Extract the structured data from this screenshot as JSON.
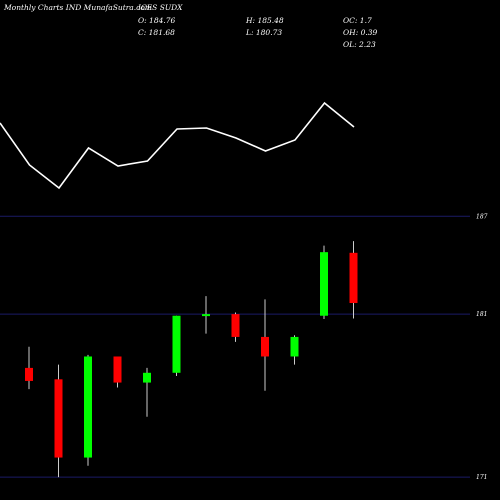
{
  "header": {
    "left": "Monthly Charts IND  MunafaSutra.com",
    "symbol": "ICES SUDX",
    "o": "O: 184.76",
    "h": "H: 185.48",
    "oc": "OC: 1.7",
    "c": "C: 181.68",
    "l": "L: 180.73",
    "oh": "OH: 0.39",
    "ol": "OL: 2.23"
  },
  "chart_data": {
    "type": "candlestick",
    "yticks": [
      {
        "value": 187,
        "label": "187"
      },
      {
        "value": 181,
        "label": "181"
      },
      {
        "value": 171,
        "label": "171"
      }
    ],
    "ylim": [
      170.7,
      188.0
    ],
    "colors": {
      "up": "#00ff00",
      "down": "#ff0000",
      "wick": "#cccccc",
      "grid": "#1a1a66",
      "line": "#ffffff"
    },
    "candles": [
      {
        "open": 177.7,
        "high": 179.0,
        "low": 176.4,
        "close": 176.9
      },
      {
        "open": 177.0,
        "high": 177.9,
        "low": 171.0,
        "close": 172.2
      },
      {
        "open": 172.2,
        "high": 178.5,
        "low": 171.7,
        "close": 178.4
      },
      {
        "open": 178.4,
        "high": 178.4,
        "low": 176.5,
        "close": 176.8
      },
      {
        "open": 176.8,
        "high": 177.7,
        "low": 174.7,
        "close": 177.4
      },
      {
        "open": 177.4,
        "high": 180.9,
        "low": 177.2,
        "close": 180.9
      },
      {
        "open": 180.9,
        "high": 182.1,
        "low": 179.8,
        "close": 181.0
      },
      {
        "open": 181.0,
        "high": 181.1,
        "low": 179.3,
        "close": 179.6
      },
      {
        "open": 179.6,
        "high": 181.9,
        "low": 176.3,
        "close": 178.4
      },
      {
        "open": 178.4,
        "high": 179.7,
        "low": 177.9,
        "close": 179.6
      },
      {
        "open": 180.9,
        "high": 185.2,
        "low": 180.7,
        "close": 184.8
      },
      {
        "open": 184.76,
        "high": 185.48,
        "low": 180.73,
        "close": 181.68
      }
    ],
    "indicator_line": [
      0.0,
      0.42,
      0.65,
      0.25,
      0.43,
      0.38,
      0.06,
      0.05,
      0.15,
      0.28,
      0.17,
      -0.2,
      0.04
    ]
  }
}
